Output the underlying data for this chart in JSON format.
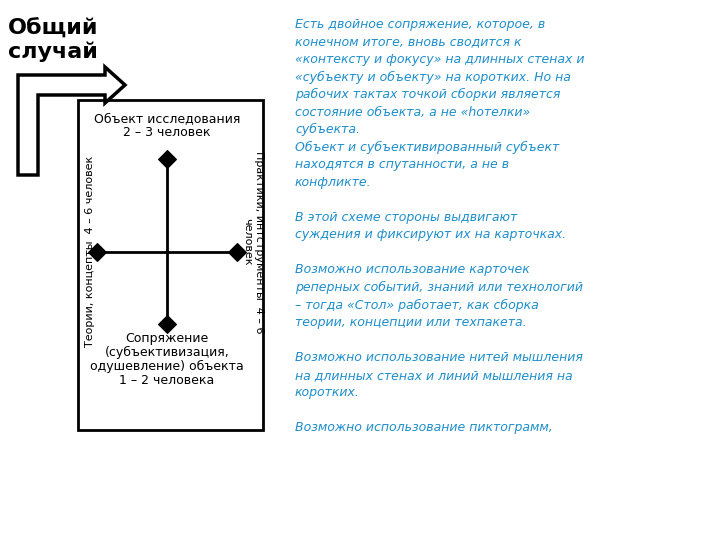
{
  "title_line1": "Общий",
  "title_line2": "случай",
  "box_label_top_line1": "Объект исследования",
  "box_label_top_line2": "2 – 3 человек",
  "box_label_bottom_line1": "Сопряжение",
  "box_label_bottom_line2": "(субъективизация,",
  "box_label_bottom_line3": "одушевление) объекта",
  "box_label_bottom_line4": "1 – 2 человека",
  "box_label_left": "Теории, концепты  4 – 6 человек",
  "box_label_right": "Практики, интструменты  4 – 6\nчеловек",
  "right_text": "Есть двойное сопряжение, которое, в\nконечном итоге, вновь сводится к\n«контексту и фокусу» на длинных стенах и\n«субъекту и объекту» на коротких. Но на\nрабочих тактах точкой сборки является\nсостояние объекта, а не «hотелки»\nсубъекта.\nОбъект и субъективированный субъект\nнаходятся в спутанности, а не в\nконфликте.\n\nВ этой схеме стороны выдвигают\nсуждения и фиксируют их на карточках.\n\nВозможно использование карточек\nреперных событий, знаний или технологий\n– тогда «Стол» работает, как сборка\nтеории, концепции или техпакета.\n\nВозможно использование нитей мышления\nна длинных стенах и линий мышления на\nкоротких.\n\nВозможно использование пиктограмм,",
  "bg_color": "#ffffff",
  "text_color_right": "#1e8fcc",
  "title_color": "#000000"
}
